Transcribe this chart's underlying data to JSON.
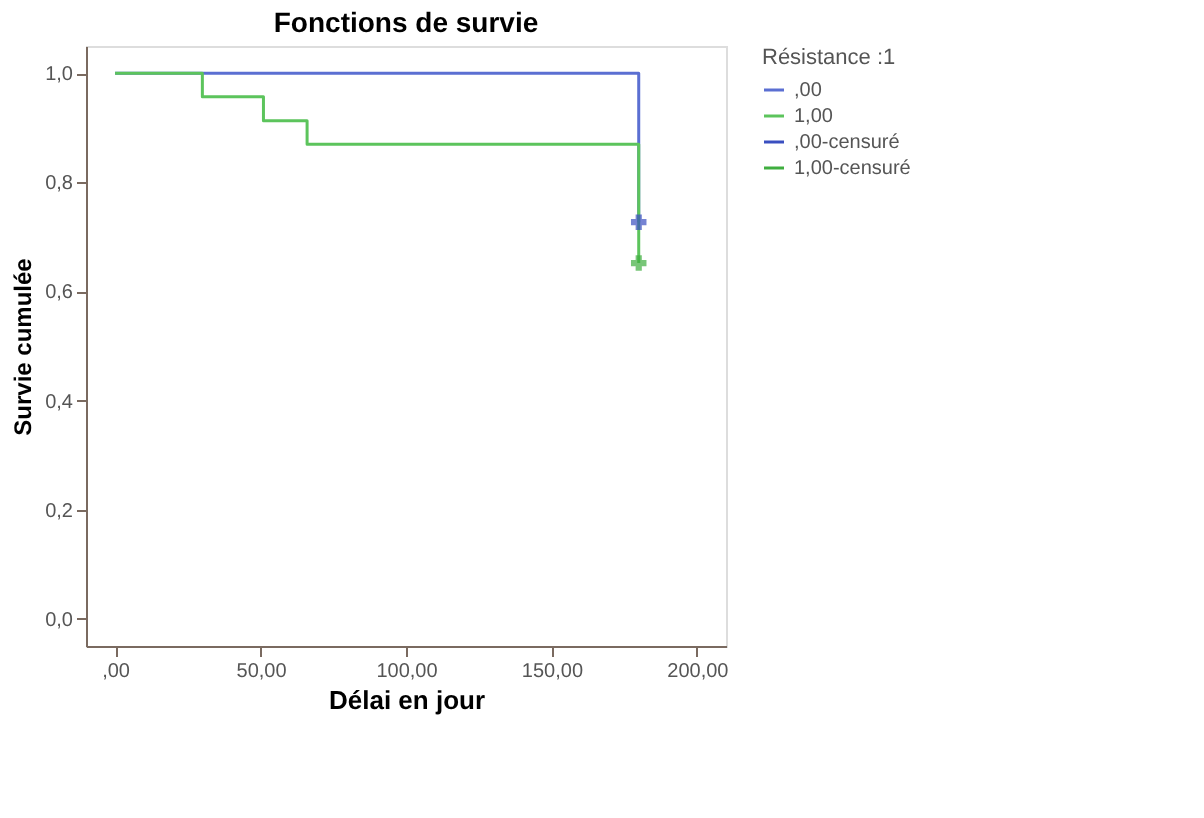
{
  "chart_data": {
    "type": "step",
    "title": "Fonctions de survie",
    "xlabel": "Délai en jour",
    "ylabel": "Survie cumulée",
    "legend_title": "Résistance :1",
    "legend": "top right",
    "grid": false,
    "xlim": [
      -10,
      210
    ],
    "ylim": [
      -0.05,
      1.05
    ],
    "xticks": [
      {
        "value": 0,
        "label": ",00"
      },
      {
        "value": 50,
        "label": "50,00"
      },
      {
        "value": 100,
        "label": "100,00"
      },
      {
        "value": 150,
        "label": "150,00"
      },
      {
        "value": 200,
        "label": "200,00"
      }
    ],
    "yticks": [
      {
        "value": 0,
        "label": "0,0"
      },
      {
        "value": 0.2,
        "label": "0,2"
      },
      {
        "value": 0.4,
        "label": "0,4"
      },
      {
        "value": 0.6,
        "label": "0,6"
      },
      {
        "value": 0.8,
        "label": "0,8"
      },
      {
        "value": 1.0,
        "label": "1,0"
      }
    ],
    "series": [
      {
        "name": ",00",
        "color": "#5b6fd2",
        "x": [
          0,
          180
        ],
        "values": [
          1.0,
          0.727
        ]
      },
      {
        "name": "1,00",
        "color": "#5cc45c",
        "x": [
          0,
          30,
          51,
          66,
          180
        ],
        "values": [
          1.0,
          0.957,
          0.913,
          0.87,
          0.652
        ]
      },
      {
        "name": ",00-censuré",
        "type": "scatter",
        "marker": "cross",
        "color": "#3a4fc0",
        "x": [
          180
        ],
        "values": [
          0.727
        ]
      },
      {
        "name": "1,00-censuré",
        "type": "scatter",
        "marker": "cross",
        "color": "#3fae3f",
        "x": [
          180
        ],
        "values": [
          0.652
        ]
      }
    ]
  }
}
